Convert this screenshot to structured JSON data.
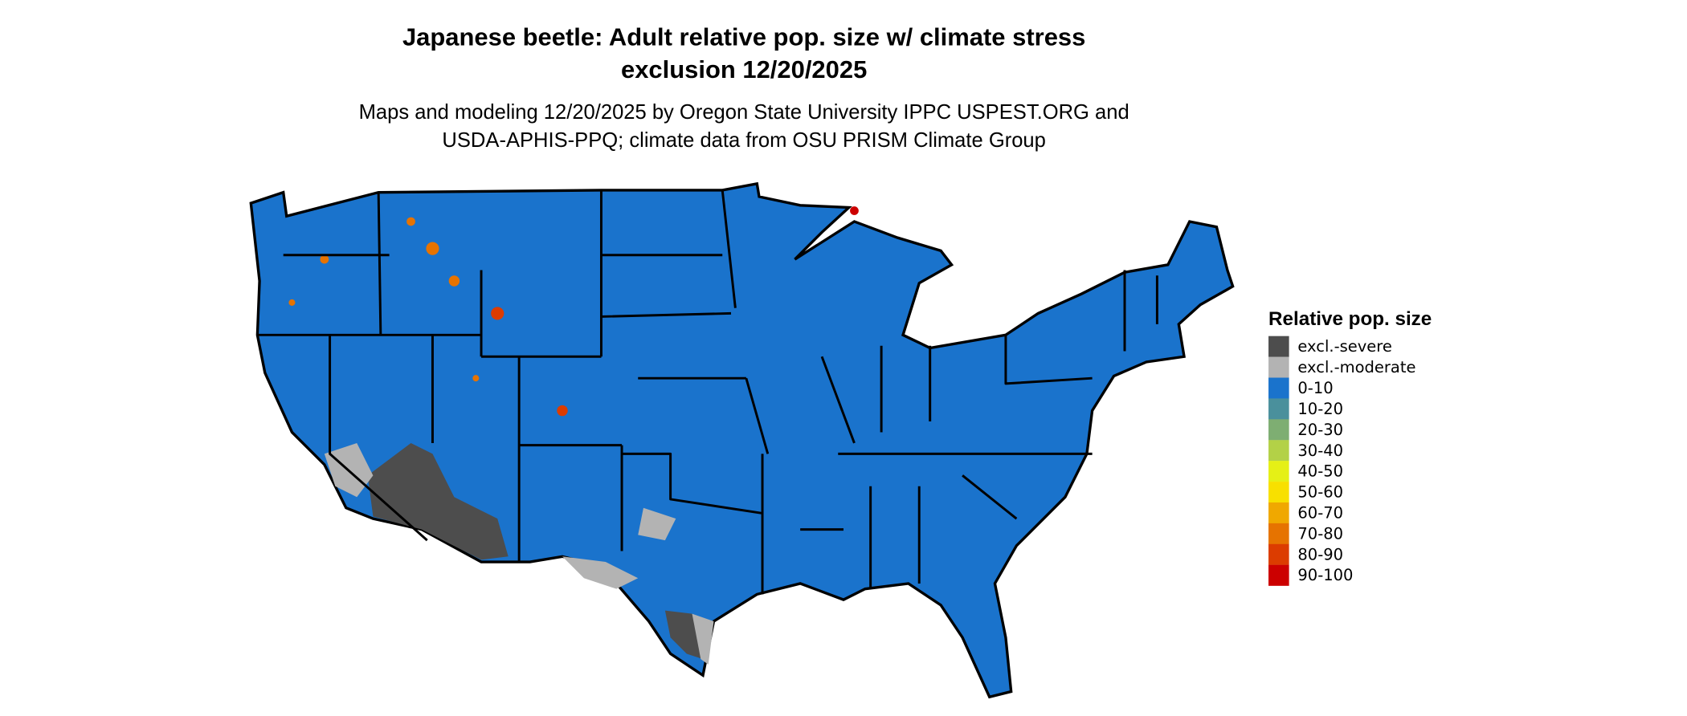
{
  "title_line1": "Japanese beetle: Adult relative pop. size w/ climate stress",
  "title_line2": "exclusion 12/20/2025",
  "subtitle_line1": "Maps and modeling 12/20/2025 by Oregon State University IPPC USPEST.ORG and",
  "subtitle_line2": "USDA-APHIS-PPQ; climate data from OSU PRISM Climate Group",
  "map": {
    "region": "Contiguous United States",
    "base_color": "#1a73cc",
    "border_color": "#000000"
  },
  "legend": {
    "title": "Relative pop. size",
    "items": [
      {
        "label": "excl.-severe",
        "color": "#4d4d4d"
      },
      {
        "label": "excl.-moderate",
        "color": "#b3b3b3"
      },
      {
        "label": "0-10",
        "color": "#1a73cc"
      },
      {
        "label": "10-20",
        "color": "#4a909c"
      },
      {
        "label": "20-30",
        "color": "#7eae72"
      },
      {
        "label": "30-40",
        "color": "#b3d147"
      },
      {
        "label": "40-50",
        "color": "#e5f016"
      },
      {
        "label": "50-60",
        "color": "#f8e000"
      },
      {
        "label": "60-70",
        "color": "#f0a800"
      },
      {
        "label": "70-80",
        "color": "#e67300"
      },
      {
        "label": "80-90",
        "color": "#dc3c00"
      },
      {
        "label": "90-100",
        "color": "#cc0000"
      }
    ]
  }
}
